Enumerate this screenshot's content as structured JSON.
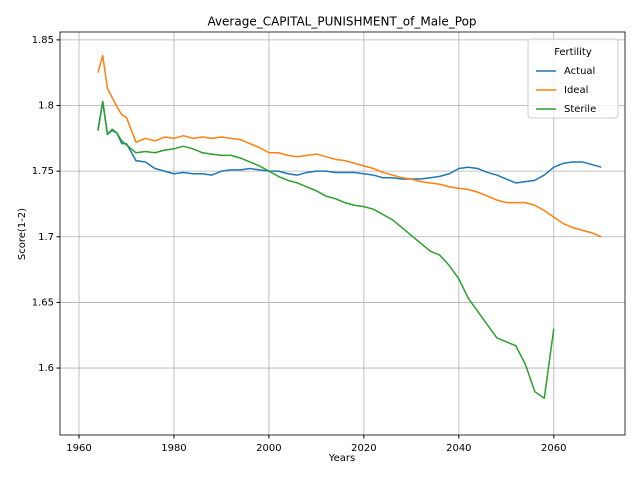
{
  "chart_data": {
    "type": "line",
    "title": "Average_CAPITAL_PUNISHMENT_of_Male_Pop",
    "x_label": "Years",
    "y_label": "Score(1-2)",
    "legend_title": "Fertility",
    "legend_position": "upper right",
    "grid": true,
    "x": [
      1964,
      1965,
      1966,
      1967,
      1968,
      1969,
      1970,
      1972,
      1974,
      1976,
      1978,
      1980,
      1982,
      1984,
      1986,
      1988,
      1990,
      1992,
      1994,
      1996,
      1998,
      2000,
      2002,
      2004,
      2006,
      2008,
      2010,
      2012,
      2014,
      2016,
      2018,
      2020,
      2022,
      2024,
      2026,
      2028,
      2030,
      2032,
      2034,
      2036,
      2038,
      2040,
      2042,
      2044,
      2046,
      2048,
      2050,
      2052,
      2054,
      2056,
      2058,
      2060,
      2062,
      2064,
      2066,
      2068,
      2070
    ],
    "series": [
      {
        "name": "Actual",
        "color": "#1f77b4",
        "values": [
          1.781,
          1.803,
          1.778,
          1.781,
          1.779,
          1.771,
          1.771,
          1.758,
          1.757,
          1.752,
          1.75,
          1.748,
          1.749,
          1.748,
          1.748,
          1.747,
          1.75,
          1.751,
          1.751,
          1.752,
          1.751,
          1.75,
          1.75,
          1.748,
          1.747,
          1.749,
          1.75,
          1.75,
          1.749,
          1.749,
          1.749,
          1.748,
          1.747,
          1.745,
          1.745,
          1.744,
          1.744,
          1.744,
          1.745,
          1.746,
          1.748,
          1.752,
          1.753,
          1.752,
          1.749,
          1.747,
          1.744,
          1.741,
          1.742,
          1.743,
          1.747,
          1.753,
          1.756,
          1.757,
          1.757,
          1.755,
          1.753
        ]
      },
      {
        "name": "Ideal",
        "color": "#ff7f0e",
        "values": [
          1.825,
          1.838,
          1.813,
          1.806,
          1.799,
          1.793,
          1.791,
          1.772,
          1.775,
          1.773,
          1.776,
          1.775,
          1.777,
          1.775,
          1.776,
          1.775,
          1.776,
          1.775,
          1.774,
          1.771,
          1.768,
          1.764,
          1.764,
          1.762,
          1.761,
          1.762,
          1.763,
          1.761,
          1.759,
          1.758,
          1.756,
          1.754,
          1.752,
          1.749,
          1.747,
          1.745,
          1.744,
          1.742,
          1.741,
          1.74,
          1.738,
          1.737,
          1.736,
          1.734,
          1.731,
          1.728,
          1.726,
          1.726,
          1.726,
          1.724,
          1.72,
          1.715,
          1.71,
          1.707,
          1.705,
          1.703,
          1.7
        ]
      },
      {
        "name": "Sterile",
        "color": "#2ca02c",
        "values": [
          1.781,
          1.803,
          1.778,
          1.782,
          1.779,
          1.773,
          1.77,
          1.764,
          1.765,
          1.764,
          1.766,
          1.767,
          1.769,
          1.767,
          1.764,
          1.763,
          1.762,
          1.762,
          1.76,
          1.757,
          1.754,
          1.75,
          1.746,
          1.743,
          1.741,
          1.738,
          1.735,
          1.731,
          1.729,
          1.726,
          1.724,
          1.723,
          1.721,
          1.717,
          1.713,
          1.707,
          1.701,
          1.695,
          1.689,
          1.686,
          1.678,
          1.668,
          1.653,
          1.643,
          1.633,
          1.623,
          1.62,
          1.617,
          1.603,
          1.582,
          1.577,
          1.63,
          null,
          null,
          null,
          null,
          null
        ]
      }
    ],
    "xlim": [
      1956,
      2075
    ],
    "xticks": [
      1960,
      1980,
      2000,
      2020,
      2040,
      2060
    ],
    "ylim": [
      1.549,
      1.856
    ],
    "yticks": [
      1.6,
      1.65,
      1.7,
      1.75,
      1.8,
      1.85
    ]
  }
}
